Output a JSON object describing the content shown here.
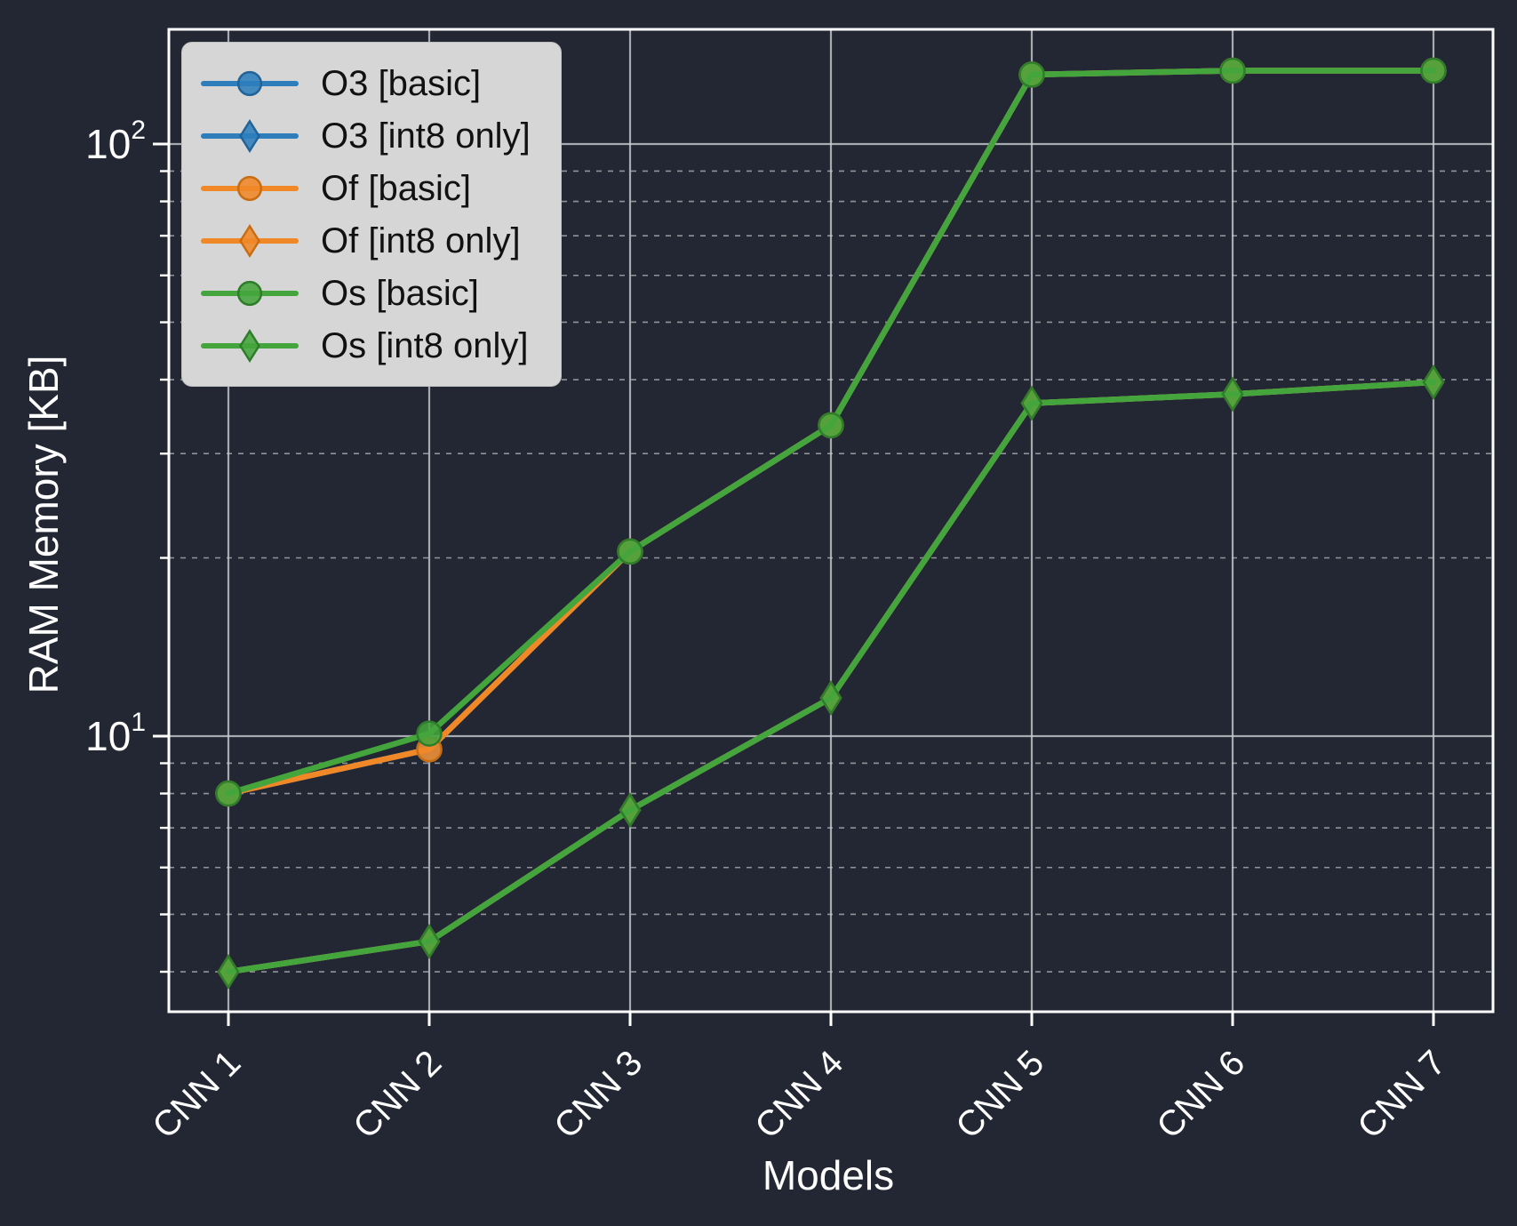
{
  "chart_data": {
    "type": "line",
    "title": "",
    "xlabel": "Models",
    "ylabel": "RAM Memory [KB]",
    "x_categories": [
      "CNN 1",
      "CNN 2",
      "CNN 3",
      "CNN 4",
      "CNN 5",
      "CNN 6",
      "CNN 7"
    ],
    "y_scale": "log",
    "y_unit": "KB",
    "y_range": [
      3.424,
      156.2
    ],
    "y_major_ticks": [
      {
        "value": 10,
        "mantissa": "10",
        "exponent": "1"
      },
      {
        "value": 100,
        "mantissa": "10",
        "exponent": "2"
      }
    ],
    "y_minor_ticks": [
      4,
      5,
      6,
      7,
      8,
      9,
      20,
      30,
      40,
      50,
      60,
      70,
      80,
      90
    ],
    "grid": {
      "major": "solid",
      "minor": "dashed"
    },
    "legend_position": "upper left",
    "series": [
      {
        "name": "O3 [basic]",
        "color": "#2e7ebc",
        "edge_color": "#226399",
        "marker": "circle",
        "values": [
          8.0,
          9.5,
          20.5,
          33.5,
          131,
          133,
          133
        ]
      },
      {
        "name": "O3 [int8 only]",
        "color": "#2e7ebc",
        "edge_color": "#226399",
        "marker": "diamond",
        "values": [
          4.0,
          4.5,
          7.5,
          11.6,
          36.5,
          37.8,
          39.6
        ]
      },
      {
        "name": "Of [basic]",
        "color": "#f08828",
        "edge_color": "#c96d12",
        "marker": "circle",
        "values": [
          8.0,
          9.5,
          20.5,
          33.5,
          131,
          133,
          133
        ]
      },
      {
        "name": "Of [int8 only]",
        "color": "#f08828",
        "edge_color": "#c96d12",
        "marker": "diamond",
        "values": [
          4.0,
          4.5,
          7.5,
          11.6,
          36.5,
          37.8,
          39.6
        ]
      },
      {
        "name": "Os [basic]",
        "color": "#44a53c",
        "edge_color": "#2f7d2a",
        "marker": "circle",
        "values": [
          8.0,
          10.1,
          20.5,
          33.5,
          131,
          133,
          133
        ]
      },
      {
        "name": "Os [int8 only]",
        "color": "#44a53c",
        "edge_color": "#2f7d2a",
        "marker": "diamond",
        "values": [
          4.0,
          4.5,
          7.5,
          11.6,
          36.5,
          37.8,
          39.6
        ]
      }
    ],
    "colors": {
      "background": "#222733",
      "grid_major": "#c9ccd1",
      "grid_minor": "#ffffff",
      "spine": "#ffffff",
      "text": "#ffffff",
      "legend_background": "#d6d6d6",
      "legend_text": "#111111"
    }
  }
}
